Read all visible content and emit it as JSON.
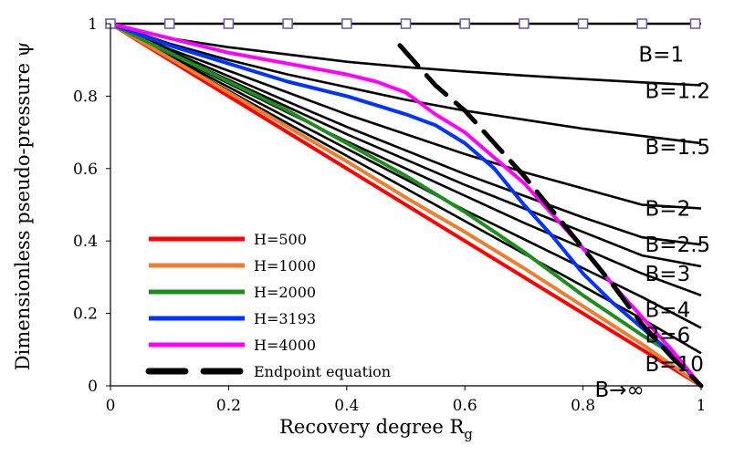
{
  "chart_data": {
    "type": "line",
    "title": "",
    "xlabel": "Recovery degree R",
    "xlabel_subscript": "g",
    "ylabel": "Dimensionless pseudo-pressure ψ",
    "xlim": [
      0,
      1
    ],
    "ylim": [
      0,
      1
    ],
    "x_ticks": [
      "0",
      "0.2",
      "0.4",
      "0.6",
      "0.8",
      "1"
    ],
    "y_ticks": [
      "0",
      "0.2",
      "0.4",
      "0.6",
      "0.8",
      "1"
    ],
    "grid": false,
    "legend_position": "bottom-left",
    "series": [
      {
        "name": "H=500",
        "color": "#ff0000",
        "x": [
          0,
          1
        ],
        "y": [
          1,
          0
        ]
      },
      {
        "name": "H=1000",
        "color": "#ed7d31",
        "x": [
          0,
          0.1,
          0.2,
          0.3,
          0.4,
          0.5,
          0.6,
          0.7,
          0.8,
          0.9,
          1
        ],
        "y": [
          1,
          0.905,
          0.81,
          0.715,
          0.62,
          0.52,
          0.425,
          0.325,
          0.22,
          0.115,
          0
        ]
      },
      {
        "name": "H=2000",
        "color": "#1e8c1e",
        "x": [
          0,
          0.1,
          0.2,
          0.3,
          0.4,
          0.5,
          0.6,
          0.7,
          0.8,
          0.9,
          0.95,
          1
        ],
        "y": [
          1,
          0.92,
          0.84,
          0.76,
          0.67,
          0.58,
          0.48,
          0.37,
          0.25,
          0.14,
          0.09,
          0
        ]
      },
      {
        "name": "H=3193",
        "color": "#0033ff",
        "x": [
          0,
          0.1,
          0.2,
          0.3,
          0.4,
          0.5,
          0.55,
          0.6,
          0.65,
          0.7,
          0.75,
          0.8,
          0.85,
          0.9,
          0.95,
          1
        ],
        "y": [
          1,
          0.94,
          0.89,
          0.84,
          0.8,
          0.75,
          0.72,
          0.67,
          0.6,
          0.5,
          0.41,
          0.31,
          0.23,
          0.16,
          0.09,
          0
        ]
      },
      {
        "name": "H=4000",
        "color": "#ff00ff",
        "x": [
          0,
          0.1,
          0.2,
          0.3,
          0.4,
          0.45,
          0.5,
          0.55,
          0.6,
          0.65,
          0.7,
          0.75,
          0.8,
          0.85,
          0.9,
          0.95,
          1
        ],
        "y": [
          1,
          0.96,
          0.92,
          0.89,
          0.86,
          0.84,
          0.81,
          0.75,
          0.7,
          0.63,
          0.56,
          0.47,
          0.38,
          0.28,
          0.19,
          0.1,
          0
        ]
      },
      {
        "name": "Endpoint equation",
        "color": "#000000",
        "dashed": true,
        "x": [
          0.49,
          0.55,
          0.6,
          0.65,
          0.7,
          0.75,
          0.8,
          0.85,
          0.9,
          0.95,
          1
        ],
        "y": [
          0.94,
          0.83,
          0.76,
          0.67,
          0.58,
          0.48,
          0.38,
          0.28,
          0.17,
          0.08,
          0
        ]
      }
    ],
    "b_curves": [
      {
        "label": "B=1",
        "x": [
          0,
          0.1,
          0.2,
          0.3,
          0.4,
          0.5,
          0.6,
          0.7,
          0.8,
          0.9,
          0.98,
          1
        ],
        "y": [
          1,
          1,
          1,
          1,
          1,
          1,
          1,
          1,
          1,
          1,
          1,
          1
        ]
      },
      {
        "label": "B=1.2",
        "x": [
          0,
          0.1,
          0.2,
          0.3,
          0.4,
          0.5,
          0.6,
          0.7,
          0.8,
          0.9,
          1
        ],
        "y": [
          1,
          0.96,
          0.935,
          0.915,
          0.895,
          0.88,
          0.868,
          0.857,
          0.847,
          0.838,
          0.83
        ]
      },
      {
        "label": "B=1.5",
        "x": [
          0,
          0.1,
          0.2,
          0.3,
          0.4,
          0.5,
          0.6,
          0.7,
          0.8,
          0.9,
          1
        ],
        "y": [
          1,
          0.945,
          0.9,
          0.86,
          0.825,
          0.79,
          0.76,
          0.735,
          0.71,
          0.69,
          0.67
        ]
      },
      {
        "label": "B=2",
        "x": [
          0,
          0.1,
          0.2,
          0.3,
          0.4,
          0.5,
          0.6,
          0.7,
          0.8,
          0.9,
          1
        ],
        "y": [
          1,
          0.93,
          0.87,
          0.81,
          0.75,
          0.695,
          0.64,
          0.59,
          0.545,
          0.5,
          0.49
        ]
      },
      {
        "label": "B=2.5",
        "x": [
          0,
          0.1,
          0.2,
          0.3,
          0.4,
          0.5,
          0.6,
          0.7,
          0.8,
          0.9,
          1
        ],
        "y": [
          1,
          0.925,
          0.855,
          0.785,
          0.715,
          0.65,
          0.585,
          0.525,
          0.465,
          0.41,
          0.39
        ]
      },
      {
        "label": "B=3",
        "x": [
          0,
          0.1,
          0.2,
          0.3,
          0.4,
          0.5,
          0.6,
          0.7,
          0.8,
          0.9,
          1
        ],
        "y": [
          1,
          0.92,
          0.845,
          0.77,
          0.695,
          0.625,
          0.555,
          0.49,
          0.425,
          0.36,
          0.33
        ]
      },
      {
        "label": "B=4",
        "x": [
          0,
          0.1,
          0.2,
          0.3,
          0.4,
          0.5,
          0.6,
          0.7,
          0.8,
          0.9,
          1
        ],
        "y": [
          1,
          0.915,
          0.835,
          0.755,
          0.675,
          0.6,
          0.525,
          0.45,
          0.38,
          0.31,
          0.25
        ]
      },
      {
        "label": "B=6",
        "x": [
          0,
          0.1,
          0.2,
          0.3,
          0.4,
          0.5,
          0.6,
          0.7,
          0.8,
          0.9,
          1
        ],
        "y": [
          1,
          0.91,
          0.825,
          0.74,
          0.655,
          0.57,
          0.485,
          0.405,
          0.325,
          0.245,
          0.16
        ]
      },
      {
        "label": "B=10",
        "x": [
          0,
          0.1,
          0.2,
          0.3,
          0.4,
          0.5,
          0.6,
          0.7,
          0.8,
          0.9,
          1
        ],
        "y": [
          1,
          0.905,
          0.815,
          0.725,
          0.635,
          0.545,
          0.455,
          0.365,
          0.275,
          0.185,
          0.09
        ]
      },
      {
        "label": "B→∞",
        "x": [
          0,
          1
        ],
        "y": [
          1,
          0
        ]
      }
    ],
    "marker_series": {
      "color": "#7060a8",
      "x": [
        0,
        0.1,
        0.2,
        0.3,
        0.4,
        0.5,
        0.6,
        0.7,
        0.8,
        0.9,
        0.99
      ],
      "y": [
        1,
        1,
        1,
        1,
        1,
        1,
        1,
        1,
        1,
        1,
        1
      ]
    }
  }
}
